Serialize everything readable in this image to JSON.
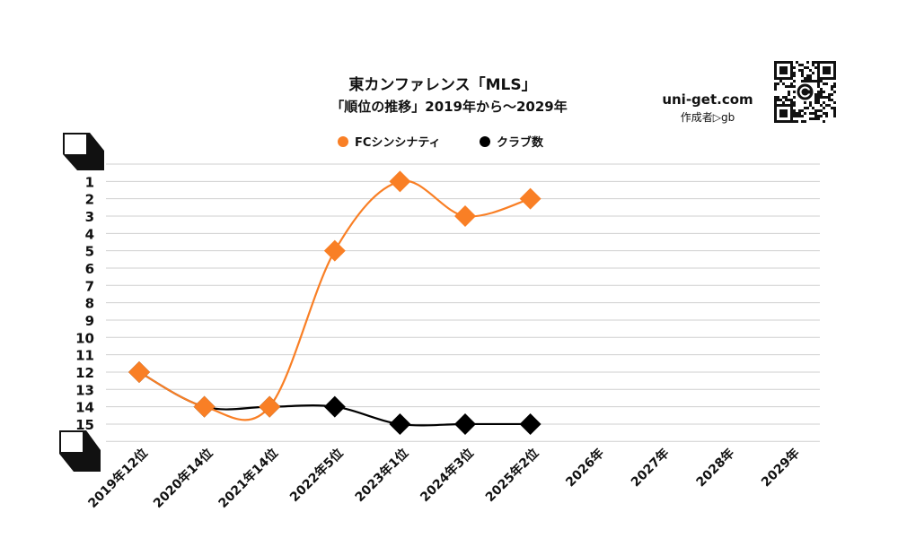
{
  "header": {
    "title": "東カンファレンス「MLS」",
    "subtitle": "「順位の推移」2019年から～2029年"
  },
  "branding": {
    "site": "uni-get.com",
    "author": "作成者▷gb",
    "qr_icon": "qr-code-icon"
  },
  "chart_data": {
    "type": "line",
    "categories": [
      "2019年12位",
      "2020年14位",
      "2021年14位",
      "2022年5位",
      "2023年1位",
      "2024年3位",
      "2025年2位",
      "2026年",
      "2027年",
      "2028年",
      "2029年"
    ],
    "y_ticks": [
      "1",
      "2",
      "3",
      "4",
      "5",
      "6",
      "7",
      "8",
      "9",
      "10",
      "11",
      "12",
      "13",
      "14",
      "15"
    ],
    "ylim": [
      0,
      16
    ],
    "y_reversed": true,
    "grid": true,
    "legend_position": "top-center",
    "series": [
      {
        "name": "FCシンシナティ",
        "color": "#F97F25",
        "values": [
          12,
          14,
          14,
          5,
          1,
          3,
          2,
          null,
          null,
          null,
          null
        ]
      },
      {
        "name": "クラブ数",
        "color": "#000000",
        "values": [
          12,
          14,
          14,
          14,
          15,
          15,
          15,
          null,
          null,
          null,
          null
        ]
      }
    ]
  }
}
